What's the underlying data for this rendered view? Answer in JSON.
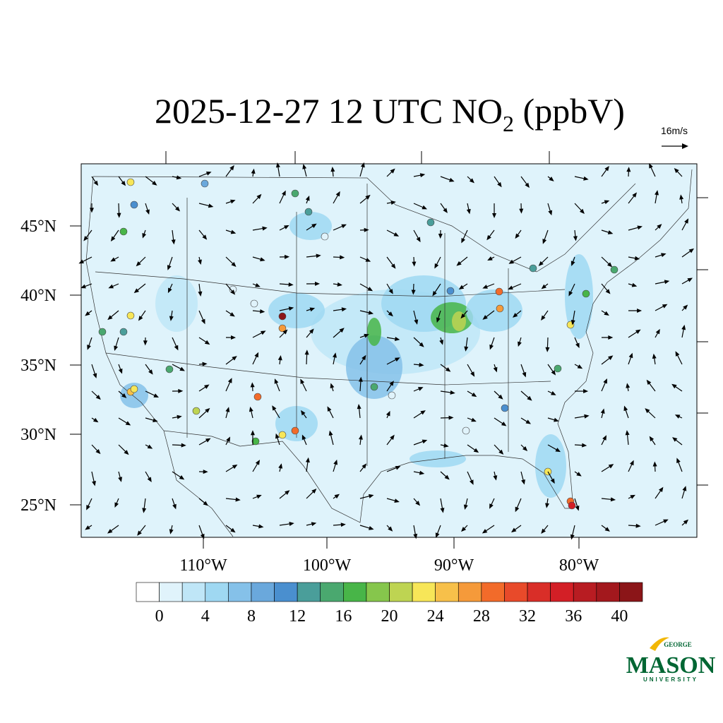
{
  "title": {
    "main": "2025-12-27 12 UTC NO",
    "subscript": "2",
    "units": " (ppbV)"
  },
  "wind_scale": "16m/s",
  "lat_labels": [
    "45°N",
    "40°N",
    "35°N",
    "30°N",
    "25°N"
  ],
  "lon_labels": [
    "110°W",
    "100°W",
    "90°W",
    "80°W"
  ],
  "colorbar": {
    "clim": [
      -2,
      42
    ],
    "levels": [
      0,
      2,
      4,
      6,
      8,
      10,
      12,
      14,
      16,
      18,
      20,
      22,
      24,
      26,
      28,
      30,
      32,
      34,
      36,
      38,
      40
    ],
    "colors": [
      "#ffffff",
      "#e0f3fb",
      "#bfe6f7",
      "#9fd8f2",
      "#85c1e9",
      "#6aa8dc",
      "#4a8fcf",
      "#4a9e9a",
      "#4aa86f",
      "#48b548",
      "#86c64c",
      "#bed452",
      "#f7e658",
      "#f7c04a",
      "#f59a3a",
      "#f26b2a",
      "#e84a2a",
      "#d92e28",
      "#d31f26",
      "#b81c22",
      "#a3181d",
      "#8b1518"
    ],
    "ticks": [
      0,
      4,
      8,
      12,
      16,
      20,
      24,
      28,
      32,
      36,
      40
    ]
  },
  "logo": {
    "top": "GEORGE",
    "main": "MASON",
    "bottom": "UNIVERSITY"
  }
}
